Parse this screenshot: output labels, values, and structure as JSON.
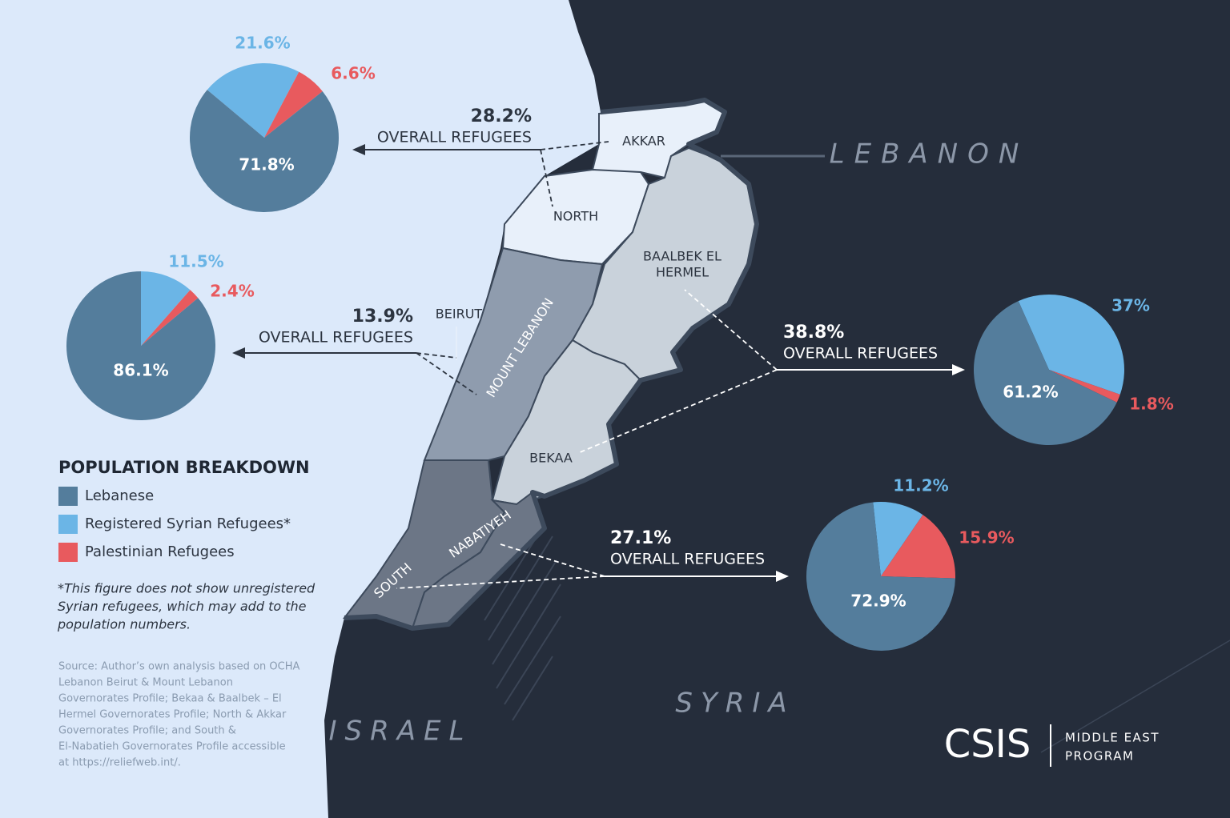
{
  "chart_data": [
    {
      "type": "pie",
      "values": [
        71.8,
        21.6,
        6.6
      ],
      "value_labels": [
        "71.8%",
        "21.6%",
        "6.6%"
      ],
      "colors": [
        "#547d9c",
        "#6bb5e6",
        "#e85a5e"
      ],
      "headline": "28.2%",
      "subtitle": "OVERALL REFUGEES"
    },
    {
      "type": "pie",
      "values": [
        86.1,
        11.5,
        2.4
      ],
      "value_labels": [
        "86.1%",
        "11.5%",
        "2.4%"
      ],
      "colors": [
        "#547d9c",
        "#6bb5e6",
        "#e85a5e"
      ],
      "headline": "13.9%",
      "subtitle": "OVERALL REFUGEES"
    },
    {
      "type": "pie",
      "values": [
        61.2,
        37,
        1.8
      ],
      "value_labels": [
        "61.2%",
        "37%",
        "1.8%"
      ],
      "colors": [
        "#547d9c",
        "#6bb5e6",
        "#e85a5e"
      ],
      "headline": "38.8%",
      "subtitle": "OVERALL REFUGEES"
    },
    {
      "type": "pie",
      "values": [
        72.9,
        11.2,
        15.9
      ],
      "value_labels": [
        "72.9%",
        "11.2%",
        "15.9%"
      ],
      "colors": [
        "#547d9c",
        "#6bb5e6",
        "#e85a5e"
      ],
      "headline": "27.1%",
      "subtitle": "OVERALL REFUGEES"
    }
  ],
  "legend": {
    "title": "POPULATION BREAKDOWN",
    "items": [
      {
        "name": "Lebanese",
        "color": "#547d9c"
      },
      {
        "name": "Registered Syrian Refugees*",
        "color": "#6bb5e6"
      },
      {
        "name": "Palestinian Refugees",
        "color": "#e85a5e"
      }
    ]
  },
  "note": [
    "*This figure does not show unregistered",
    "Syrian refugees, which may add to the",
    "population numbers."
  ],
  "source": [
    "Source: Author’s own analysis based on OCHA",
    "Lebanon Beirut & Mount Lebanon",
    "Governorates Profile; Bekaa & Baalbek – El",
    "Hermel Governorates Profile; North & Akkar",
    "Governorates Profile; and South &",
    "El-Nabatieh Governorates Profile accessible",
    "at https://reliefweb.int/."
  ],
  "map": {
    "countries": [
      "LEBANON",
      "SYRIA",
      "ISRAEL"
    ],
    "regions": [
      "AKKAR",
      "NORTH",
      "BAALBEK EL",
      "HERMEL",
      "BEIRUT",
      "MOUNT LEBANON",
      "BEKAA",
      "NABATIYEH",
      "SOUTH"
    ]
  },
  "logo": {
    "name": "CSIS",
    "program": [
      "MIDDLE EAST",
      "PROGRAM"
    ]
  }
}
